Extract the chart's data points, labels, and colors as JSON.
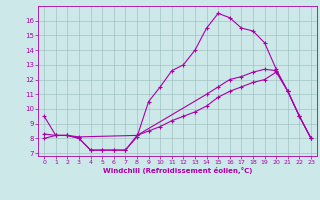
{
  "xlabel": "Windchill (Refroidissement éolien,°C)",
  "background_color": "#cce8e8",
  "line_color": "#aa00aa",
  "xlim": [
    -0.5,
    23.5
  ],
  "ylim": [
    6.8,
    17.0
  ],
  "yticks": [
    7,
    8,
    9,
    10,
    11,
    12,
    13,
    14,
    15,
    16
  ],
  "xticks": [
    0,
    1,
    2,
    3,
    4,
    5,
    6,
    7,
    8,
    9,
    10,
    11,
    12,
    13,
    14,
    15,
    16,
    17,
    18,
    19,
    20,
    21,
    22,
    23
  ],
  "series1_x": [
    0,
    1,
    2,
    3,
    4,
    5,
    6,
    7,
    8,
    9,
    10,
    11,
    12,
    13,
    14,
    15,
    16,
    17,
    18,
    19,
    20,
    21,
    22,
    23
  ],
  "series1_y": [
    9.5,
    8.2,
    8.2,
    8.0,
    7.2,
    7.2,
    7.2,
    7.2,
    8.1,
    10.5,
    11.5,
    12.6,
    13.0,
    14.0,
    15.5,
    16.5,
    16.2,
    15.5,
    15.3,
    14.5,
    12.7,
    11.2,
    9.5,
    8.0
  ],
  "series2_x": [
    0,
    1,
    2,
    3,
    8,
    14,
    15,
    16,
    17,
    18,
    19,
    20,
    21,
    22,
    23
  ],
  "series2_y": [
    8.3,
    8.2,
    8.2,
    8.1,
    8.2,
    11.0,
    11.5,
    12.0,
    12.2,
    12.5,
    12.7,
    12.6,
    11.2,
    9.5,
    8.0
  ],
  "series3_x": [
    0,
    1,
    2,
    3,
    4,
    5,
    6,
    7,
    8,
    9,
    10,
    11,
    12,
    13,
    14,
    15,
    16,
    17,
    18,
    19,
    20,
    21,
    22,
    23
  ],
  "series3_y": [
    8.0,
    8.2,
    8.2,
    8.0,
    7.2,
    7.2,
    7.2,
    7.2,
    8.2,
    8.5,
    8.8,
    9.2,
    9.5,
    9.8,
    10.2,
    10.8,
    11.2,
    11.5,
    11.8,
    12.0,
    12.5,
    11.2,
    9.5,
    8.0
  ]
}
